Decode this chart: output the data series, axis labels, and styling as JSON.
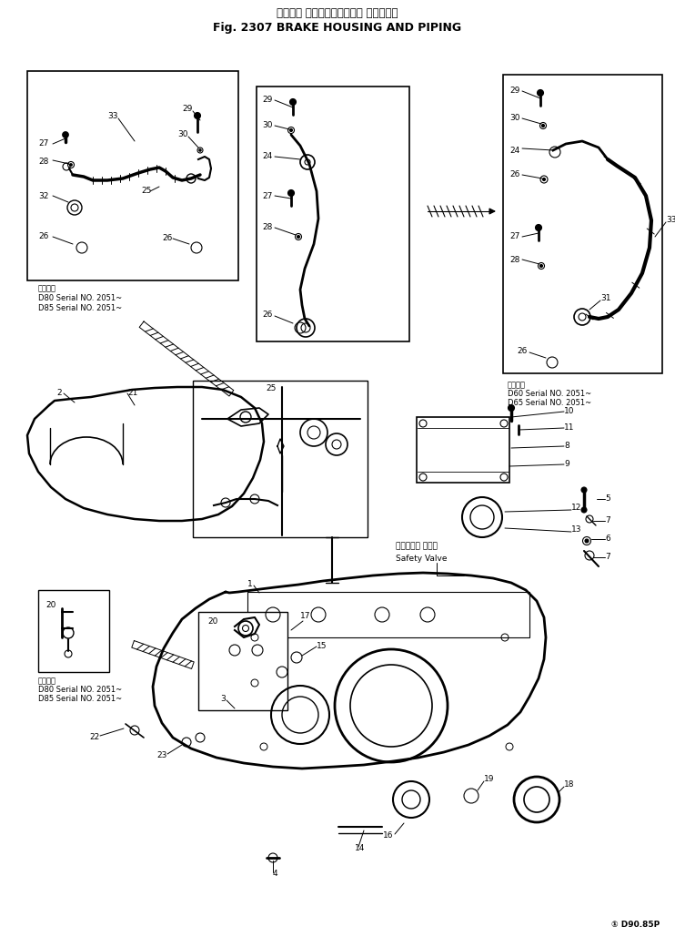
{
  "title_japanese": "ブレーキ ハウジング　および パイピング",
  "title_english": "Fig. 2307 BRAKE HOUSING AND PIPING",
  "bg_color": "#ffffff",
  "figure_code": "① D90.85P",
  "safety_valve_jp": "セーフティ バルブ",
  "safety_valve_en": "Safety Valve",
  "note1_header": "適用底号",
  "note1_l1": "D80 Serial NO. 2051~",
  "note1_l2": "D85 Serial NO. 2051~",
  "note2_header": "適用底号",
  "note2_l1": "D60 Serial NO. 2051~",
  "note2_l2": "D65 Serial NO. 2051~",
  "note3_header": "適用底号",
  "note3_l1": "D80 Serial NO. 2051~",
  "note3_l2": "D85 Serial NO. 2051~"
}
